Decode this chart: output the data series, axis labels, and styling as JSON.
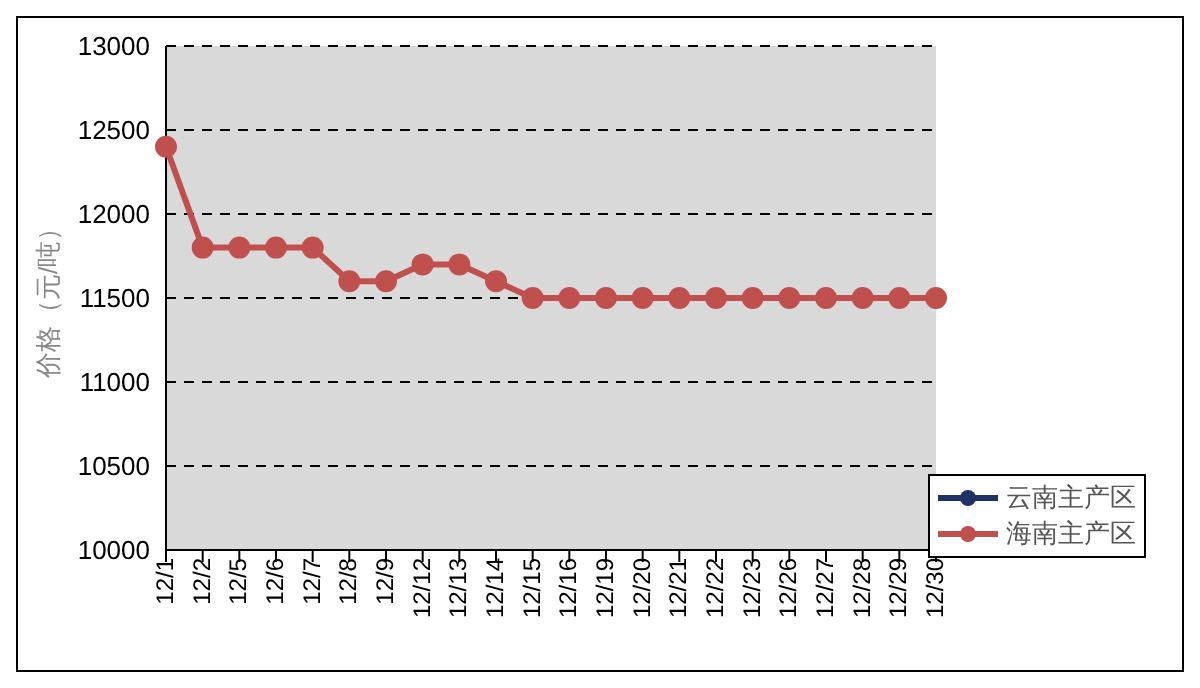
{
  "chart_data": {
    "type": "line",
    "ylabel": "价格（元/吨）",
    "categories": [
      "12/1",
      "12/2",
      "12/5",
      "12/6",
      "12/7",
      "12/8",
      "12/9",
      "12/12",
      "12/13",
      "12/14",
      "12/15",
      "12/16",
      "12/19",
      "12/20",
      "12/21",
      "12/22",
      "12/23",
      "12/26",
      "12/27",
      "12/28",
      "12/29",
      "12/30"
    ],
    "series": [
      {
        "name": "云南主产区",
        "color": "#1f3264",
        "values": [
          null,
          null,
          null,
          null,
          null,
          null,
          null,
          null,
          null,
          null,
          null,
          null,
          null,
          null,
          null,
          null,
          null,
          null,
          null,
          null,
          null,
          null
        ]
      },
      {
        "name": "海南主产区",
        "color": "#c0504d",
        "values": [
          12400,
          11800,
          11800,
          11800,
          11800,
          11600,
          11600,
          11700,
          11700,
          11600,
          11500,
          11500,
          11500,
          11500,
          11500,
          11500,
          11500,
          11500,
          11500,
          11500,
          11500,
          11500
        ]
      }
    ],
    "ylim": [
      10000,
      13000
    ],
    "yticks": [
      10000,
      10500,
      11000,
      11500,
      12000,
      12500,
      13000
    ],
    "grid": "y",
    "legend": "bottom right",
    "marker": "circle",
    "line_style": "solid"
  }
}
